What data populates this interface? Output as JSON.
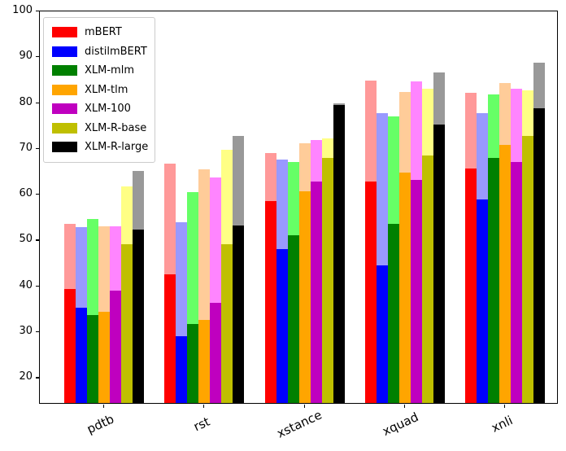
{
  "chart_data": {
    "type": "bar",
    "title": "",
    "xlabel": "",
    "ylabel": "",
    "categories": [
      "pdtb",
      "rst",
      "xstance",
      "xquad",
      "xnli"
    ],
    "yticks": [
      20,
      30,
      40,
      50,
      60,
      70,
      80,
      90,
      100
    ],
    "ylim": [
      14.2,
      100
    ],
    "grid": false,
    "legend_position": "upper left",
    "bar_style": "each bar has an opaque (solid) segment and a taller translucent (light) segment behind it",
    "series": [
      {
        "name": "mBERT",
        "color": "#ff0000",
        "light_color": "#ff9999",
        "solid": [
          39.1,
          42.2,
          58.2,
          62.5,
          65.4
        ],
        "light": [
          53.2,
          66.4,
          68.8,
          84.6,
          81.9
        ]
      },
      {
        "name": "distilmBERT",
        "color": "#0000ff",
        "light_color": "#9999ff",
        "solid": [
          34.9,
          28.7,
          47.7,
          44.3,
          58.6
        ],
        "light": [
          52.6,
          53.7,
          67.4,
          77.5,
          77.5
        ]
      },
      {
        "name": "XLM-mlm",
        "color": "#008000",
        "light_color": "#66ff66",
        "solid": [
          33.4,
          31.4,
          50.8,
          53.2,
          67.7
        ],
        "light": [
          54.4,
          60.2,
          66.8,
          76.8,
          81.6
        ]
      },
      {
        "name": "XLM-tlm",
        "color": "#ffa500",
        "light_color": "#ffcc99",
        "solid": [
          34.1,
          32.4,
          60.4,
          64.4,
          70.5
        ],
        "light": [
          52.8,
          65.2,
          70.8,
          82.0,
          84.0
        ]
      },
      {
        "name": "XLM-100",
        "color": "#bf00bf",
        "light_color": "#ff85ff",
        "solid": [
          38.7,
          36.1,
          62.5,
          62.8,
          66.8
        ],
        "light": [
          52.8,
          63.4,
          71.5,
          84.3,
          82.7
        ]
      },
      {
        "name": "XLM-R-base",
        "color": "#bfbf00",
        "light_color": "#ffff85",
        "solid": [
          48.9,
          48.9,
          67.7,
          68.2,
          72.4
        ],
        "light": [
          61.4,
          69.5,
          72.0,
          82.8,
          82.5
        ]
      },
      {
        "name": "XLM-R-large",
        "color": "#000000",
        "light_color": "#999999",
        "solid": [
          52.1,
          52.9,
          79.2,
          75.0,
          78.5
        ],
        "light": [
          64.9,
          72.5,
          79.6,
          86.4,
          88.4
        ]
      }
    ]
  }
}
